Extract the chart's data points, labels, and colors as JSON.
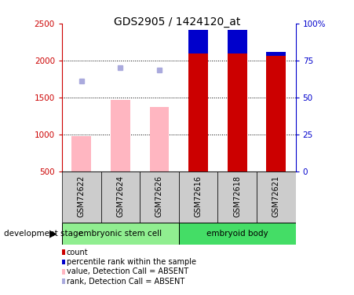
{
  "title": "GDS2905 / 1424120_at",
  "samples": [
    "GSM72622",
    "GSM72624",
    "GSM72626",
    "GSM72616",
    "GSM72618",
    "GSM72621"
  ],
  "group1_name": "embryonic stem cell",
  "group1_color": "#90EE90",
  "group2_name": "embryoid body",
  "group2_color": "#44DD66",
  "count_values": [
    null,
    null,
    null,
    2420,
    2420,
    2120
  ],
  "count_color": "#CC0000",
  "rank_values": [
    null,
    null,
    null,
    2100,
    2100,
    2060
  ],
  "rank_color": "#0000CC",
  "absent_value_bars": [
    980,
    1470,
    1370,
    null,
    null,
    null
  ],
  "absent_value_color": "#FFB6C1",
  "absent_rank_dots": [
    1720,
    1900,
    1870,
    null,
    null,
    null
  ],
  "absent_rank_color": "#AAAADD",
  "ylim_left": [
    500,
    2500
  ],
  "ylim_right": [
    0,
    100
  ],
  "yticks_left": [
    500,
    1000,
    1500,
    2000,
    2500
  ],
  "yticks_right": [
    0,
    25,
    50,
    75,
    100
  ],
  "left_axis_color": "#CC0000",
  "right_axis_color": "#0000CC",
  "bar_width": 0.5,
  "bar_base": 500,
  "grid_lines": [
    1000,
    1500,
    2000
  ],
  "dev_stage_label": "development stage",
  "legend_items": [
    [
      "#CC0000",
      "count"
    ],
    [
      "#0000CC",
      "percentile rank within the sample"
    ],
    [
      "#FFB6C1",
      "value, Detection Call = ABSENT"
    ],
    [
      "#AAAADD",
      "rank, Detection Call = ABSENT"
    ]
  ]
}
